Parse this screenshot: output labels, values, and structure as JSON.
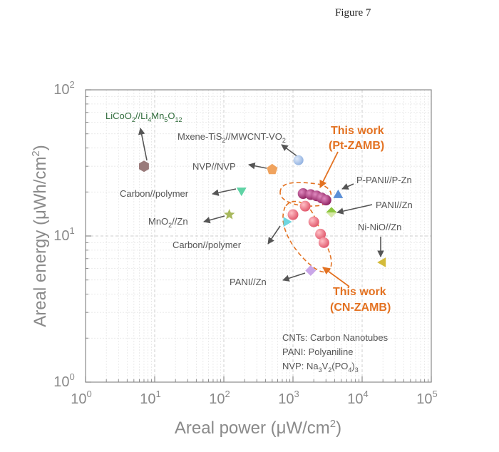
{
  "figure_caption": "Figure 7",
  "chart_data": {
    "type": "scatter",
    "xscale": "log",
    "yscale": "log",
    "xlim": [
      1,
      100000
    ],
    "ylim": [
      1,
      100
    ],
    "grid": true,
    "xlabel": "Areal power (μW/cm²)",
    "ylabel": "Areal energy (μWh/cm²)",
    "xticks": [
      {
        "value": 1,
        "base": "10",
        "exp": "0"
      },
      {
        "value": 10,
        "base": "10",
        "exp": "1"
      },
      {
        "value": 100,
        "base": "10",
        "exp": "2"
      },
      {
        "value": 1000,
        "base": "10",
        "exp": "3"
      },
      {
        "value": 10000,
        "base": "10",
        "exp": "4"
      },
      {
        "value": 100000,
        "base": "10",
        "exp": "5"
      }
    ],
    "yticks": [
      {
        "value": 1,
        "base": "10",
        "exp": "0"
      },
      {
        "value": 10,
        "base": "10",
        "exp": "1"
      },
      {
        "value": 100,
        "base": "10",
        "exp": "2"
      }
    ],
    "points": [
      {
        "label": "LiCoO2//Li4Mn5O12",
        "x": 7,
        "y": 30,
        "marker": "hexagon",
        "color": "#9a7b7b"
      },
      {
        "label": "Mxene-TiS2//MWCNT-VO2",
        "x": 1200,
        "y": 33,
        "marker": "circle",
        "color": "#a9c4ea"
      },
      {
        "label": "NVP//NVP",
        "x": 500,
        "y": 28.5,
        "marker": "pentagon",
        "color": "#f0a35e"
      },
      {
        "label": "Carbon//polymer",
        "x": 180,
        "y": 20.5,
        "marker": "triangle-down",
        "color": "#5fd3a5"
      },
      {
        "label": "MnO2//Zn",
        "x": 120,
        "y": 14,
        "marker": "star",
        "color": "#a7b85c"
      },
      {
        "label": "Carbon//polymer",
        "x": 800,
        "y": 12.5,
        "marker": "triangle-right",
        "color": "#6fd6e0"
      },
      {
        "label": "PANI//Zn",
        "x": 1800,
        "y": 5.8,
        "marker": "diamond",
        "color": "#c9a6e8"
      },
      {
        "label": "P-PANI//P-Zn",
        "x": 4500,
        "y": 19,
        "marker": "triangle-up",
        "color": "#5b8fd6"
      },
      {
        "label": "PANI//Zn",
        "x": 3600,
        "y": 14.5,
        "marker": "diamond-half",
        "color": "#8cc63f"
      },
      {
        "label": "Ni-NiO//Zn",
        "x": 20000,
        "y": 6.6,
        "marker": "triangle-left",
        "color": "#d4bb3a"
      }
    ],
    "series": [
      {
        "name": "This work (Pt-ZAMB)",
        "color": "#9c2a6e",
        "x": [
          1400,
          1800,
          2200,
          2600,
          3000
        ],
        "y": [
          19.5,
          19.2,
          18.8,
          18.2,
          17.6
        ]
      },
      {
        "name": "This work (CN-ZAMB)",
        "color": "#e56a7a",
        "x": [
          1000,
          1500,
          2000,
          2500,
          2800
        ],
        "y": [
          14,
          16,
          12.5,
          10.3,
          9
        ]
      }
    ],
    "annotations": {
      "pt_line1": "This work",
      "pt_line2": "(Pt-ZAMB)",
      "cn_line1": "This work",
      "cn_line2": "(CN-ZAMB)",
      "legend_notes": [
        "CNTs: Carbon Nanotubes",
        "PANI: Polyaniline",
        "NVP: Na3V2(PO4)3"
      ]
    }
  }
}
